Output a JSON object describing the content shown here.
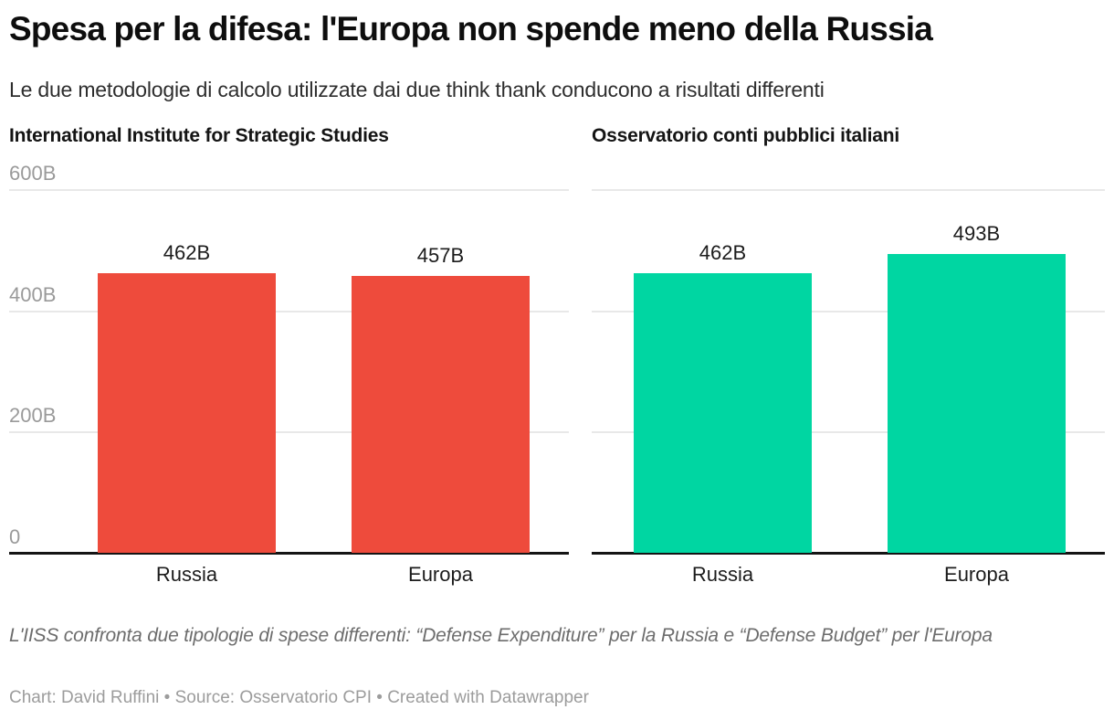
{
  "header": {
    "title": "Spesa per la difesa: l'Europa non spende meno della Russia",
    "subtitle": "Le due metodologie di calcolo utilizzate dai due think thank conducono a risultati differenti"
  },
  "chart_data": [
    {
      "type": "bar",
      "title": "International Institute for Strategic Studies",
      "categories": [
        "Russia",
        "Europa"
      ],
      "values": [
        462,
        457
      ],
      "value_labels": [
        "462B",
        "457B"
      ],
      "unit": "B",
      "bar_color": "#ee4b3c",
      "ylim": [
        0,
        600
      ],
      "ytick_values": [
        600,
        400,
        200,
        0
      ],
      "ytick_labels": [
        "600B",
        "400B",
        "200B",
        "0"
      ],
      "show_yticks": true,
      "grid": true,
      "legend": "none"
    },
    {
      "type": "bar",
      "title": "Osservatorio conti pubblici italiani",
      "categories": [
        "Russia",
        "Europa"
      ],
      "values": [
        462,
        493
      ],
      "value_labels": [
        "462B",
        "493B"
      ],
      "unit": "B",
      "bar_color": "#00d6a2",
      "ylim": [
        0,
        600
      ],
      "ytick_values": [
        600,
        400,
        200,
        0
      ],
      "ytick_labels": [
        "600B",
        "400B",
        "200B",
        "0"
      ],
      "show_yticks": false,
      "grid": true,
      "legend": "none"
    }
  ],
  "footer": {
    "note": "L'IISS confronta due tipologie di spese differenti: “Defense Expenditure” per la Russia e “Defense Budget” per l'Europa",
    "credits": "Chart: David Ruffini • Source: Osservatorio CPI • Created with Datawrapper"
  }
}
